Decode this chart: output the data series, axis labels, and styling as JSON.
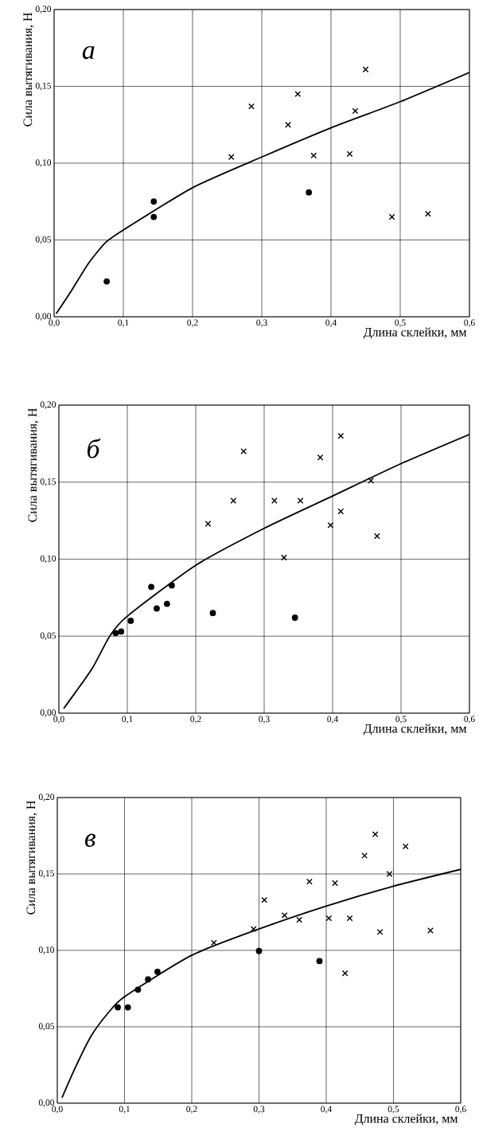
{
  "chart_data": [
    {
      "type": "scatter",
      "xlabel": "Длина склейки, мм",
      "ylabel": "Сила вытягивания, Н",
      "annotations": [
        "а"
      ],
      "xlim": [
        0,
        0.6
      ],
      "ylim": [
        0,
        0.2
      ],
      "xticks": [
        {
          "value": 0,
          "label": "0,0"
        },
        {
          "value": 0.1,
          "label": "0,1"
        },
        {
          "value": 0.2,
          "label": "0,2"
        },
        {
          "value": 0.3,
          "label": "0,3"
        },
        {
          "value": 0.4,
          "label": "0,4"
        },
        {
          "value": 0.5,
          "label": "0,5"
        },
        {
          "value": 0.6,
          "label": "0,6"
        }
      ],
      "yticks": [
        {
          "value": 0,
          "label": "0,00"
        },
        {
          "value": 0.05,
          "label": "0,05"
        },
        {
          "value": 0.1,
          "label": "0,10"
        },
        {
          "value": 0.15,
          "label": "0,15"
        },
        {
          "value": 0.2,
          "label": "0,20"
        }
      ],
      "grid": true,
      "series": [
        {
          "type": "line",
          "color": "#000000",
          "marker": "none",
          "line_style": "solid",
          "x": [
            0.003,
            0.025,
            0.05,
            0.075,
            0.1,
            0.2,
            0.3,
            0.4,
            0.5,
            0.6
          ],
          "values": [
            0.002,
            0.017,
            0.035,
            0.0486,
            0.0565,
            0.084,
            0.104,
            0.123,
            0.14,
            0.159
          ]
        },
        {
          "color": "#000000",
          "marker": "circle",
          "x": [
            0.076,
            0.144,
            0.144,
            0.368
          ],
          "values": [
            0.023,
            0.075,
            0.065,
            0.081
          ]
        },
        {
          "color": "#000000",
          "marker": "cross",
          "x": [
            0.256,
            0.285,
            0.338,
            0.352,
            0.375,
            0.427,
            0.435,
            0.45,
            0.488,
            0.54
          ],
          "values": [
            0.104,
            0.137,
            0.125,
            0.145,
            0.105,
            0.106,
            0.134,
            0.161,
            0.065,
            0.067
          ]
        }
      ]
    },
    {
      "type": "scatter",
      "xlabel": "Длина склейки, мм",
      "ylabel": "Сила вытягивания, Н",
      "annotations": [
        "б"
      ],
      "xlim": [
        0,
        0.6
      ],
      "ylim": [
        0,
        0.2
      ],
      "xticks": [
        {
          "value": 0,
          "label": "0,0"
        },
        {
          "value": 0.1,
          "label": "0,1"
        },
        {
          "value": 0.2,
          "label": "0,2"
        },
        {
          "value": 0.3,
          "label": "0,3"
        },
        {
          "value": 0.4,
          "label": "0,4"
        },
        {
          "value": 0.5,
          "label": "0,5"
        },
        {
          "value": 0.6,
          "label": "0,6"
        }
      ],
      "yticks": [
        {
          "value": 0,
          "label": "0,00"
        },
        {
          "value": 0.05,
          "label": "0,05"
        },
        {
          "value": 0.1,
          "label": "0,10"
        },
        {
          "value": 0.15,
          "label": "0,15"
        },
        {
          "value": 0.2,
          "label": "0,20"
        }
      ],
      "grid": true,
      "series": [
        {
          "type": "line",
          "color": "#000000",
          "marker": "none",
          "line_style": "solid",
          "x": [
            0.007,
            0.025,
            0.05,
            0.075,
            0.1,
            0.2,
            0.3,
            0.4,
            0.5,
            0.6
          ],
          "values": [
            0.003,
            0.014,
            0.03,
            0.0505,
            0.063,
            0.096,
            0.12,
            0.141,
            0.162,
            0.181
          ]
        },
        {
          "color": "#000000",
          "marker": "circle",
          "x": [
            0.083,
            0.091,
            0.105,
            0.135,
            0.143,
            0.158,
            0.165,
            0.225,
            0.345
          ],
          "values": [
            0.052,
            0.053,
            0.06,
            0.082,
            0.068,
            0.071,
            0.083,
            0.065,
            0.062
          ]
        },
        {
          "color": "#000000",
          "marker": "cross",
          "x": [
            0.218,
            0.255,
            0.27,
            0.315,
            0.329,
            0.353,
            0.382,
            0.397,
            0.412,
            0.412,
            0.456,
            0.465
          ],
          "values": [
            0.123,
            0.138,
            0.17,
            0.138,
            0.101,
            0.138,
            0.166,
            0.122,
            0.18,
            0.131,
            0.151,
            0.115
          ]
        }
      ]
    },
    {
      "type": "scatter",
      "xlabel": "Длина склейки, мм",
      "ylabel": "Сила вытягивания, Н",
      "annotations": [
        "в"
      ],
      "xlim": [
        0,
        0.6
      ],
      "ylim": [
        0,
        0.2
      ],
      "xticks": [
        {
          "value": 0,
          "label": "0,0"
        },
        {
          "value": 0.1,
          "label": "0,1"
        },
        {
          "value": 0.2,
          "label": "0,2"
        },
        {
          "value": 0.3,
          "label": "0,3"
        },
        {
          "value": 0.4,
          "label": "0,4"
        },
        {
          "value": 0.5,
          "label": "0,5"
        },
        {
          "value": 0.6,
          "label": "0,6"
        }
      ],
      "yticks": [
        {
          "value": 0,
          "label": "0,00"
        },
        {
          "value": 0.05,
          "label": "0,05"
        },
        {
          "value": 0.1,
          "label": "0,10"
        },
        {
          "value": 0.15,
          "label": "0,15"
        },
        {
          "value": 0.2,
          "label": "0,20"
        }
      ],
      "grid": true,
      "series": [
        {
          "type": "line",
          "color": "#000000",
          "marker": "none",
          "line_style": "solid",
          "x": [
            0.007,
            0.025,
            0.05,
            0.075,
            0.1,
            0.2,
            0.3,
            0.4,
            0.5,
            0.6
          ],
          "values": [
            0.0036,
            0.0216,
            0.0437,
            0.0587,
            0.0697,
            0.0968,
            0.114,
            0.129,
            0.142,
            0.153
          ]
        },
        {
          "color": "#000000",
          "marker": "circle",
          "x": [
            0.09,
            0.105,
            0.12,
            0.135,
            0.149,
            0.3,
            0.39
          ],
          "values": [
            0.0627,
            0.0627,
            0.0743,
            0.081,
            0.086,
            0.0996,
            0.093
          ]
        },
        {
          "color": "#000000",
          "marker": "cross",
          "x": [
            0.233,
            0.292,
            0.308,
            0.338,
            0.36,
            0.375,
            0.404,
            0.413,
            0.428,
            0.435,
            0.457,
            0.473,
            0.48,
            0.494,
            0.518,
            0.555
          ],
          "values": [
            0.105,
            0.114,
            0.133,
            0.123,
            0.12,
            0.145,
            0.121,
            0.144,
            0.085,
            0.121,
            0.162,
            0.176,
            0.112,
            0.15,
            0.168,
            0.113
          ]
        }
      ]
    }
  ]
}
